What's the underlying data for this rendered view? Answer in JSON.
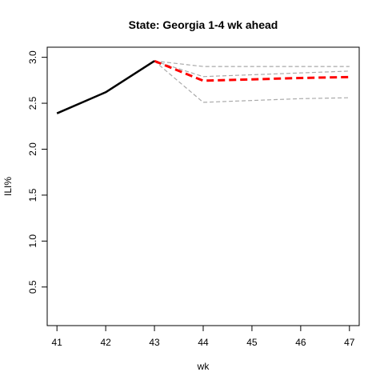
{
  "chart_data": {
    "type": "line",
    "title": "State: Georgia 1-4 wk ahead",
    "xlabel": "wk",
    "ylabel": "ILI%",
    "x_ticks": [
      "41",
      "42",
      "43",
      "44",
      "45",
      "46",
      "47"
    ],
    "y_ticks": [
      "0.5",
      "1.0",
      "1.5",
      "2.0",
      "2.5",
      "3.0"
    ],
    "xlim": [
      40.8,
      47.2
    ],
    "ylim": [
      0.08,
      3.11
    ],
    "grid": false,
    "legend": "none",
    "colors": {
      "observed": "#000000",
      "forecast": "#ff0000",
      "interval": "#aaaaaa"
    },
    "series": [
      {
        "style": "solid",
        "x": [
          41,
          42,
          43
        ],
        "y": [
          2.39,
          2.62,
          2.96
        ]
      },
      {
        "style": "dashed",
        "x": [
          43,
          44,
          45,
          46,
          47
        ],
        "y": [
          2.96,
          2.745,
          2.76,
          2.775,
          2.785
        ]
      },
      {
        "style": "dashed",
        "x": [
          43,
          44,
          45,
          46,
          47
        ],
        "y": [
          2.96,
          2.9,
          2.9,
          2.9,
          2.9
        ]
      },
      {
        "style": "dashed",
        "x": [
          43,
          44,
          45,
          46,
          47
        ],
        "y": [
          2.96,
          2.79,
          2.81,
          2.83,
          2.85
        ]
      },
      {
        "style": "dashed",
        "x": [
          43,
          44,
          45,
          46,
          47
        ],
        "y": [
          2.96,
          2.51,
          2.53,
          2.55,
          2.56
        ]
      }
    ]
  }
}
